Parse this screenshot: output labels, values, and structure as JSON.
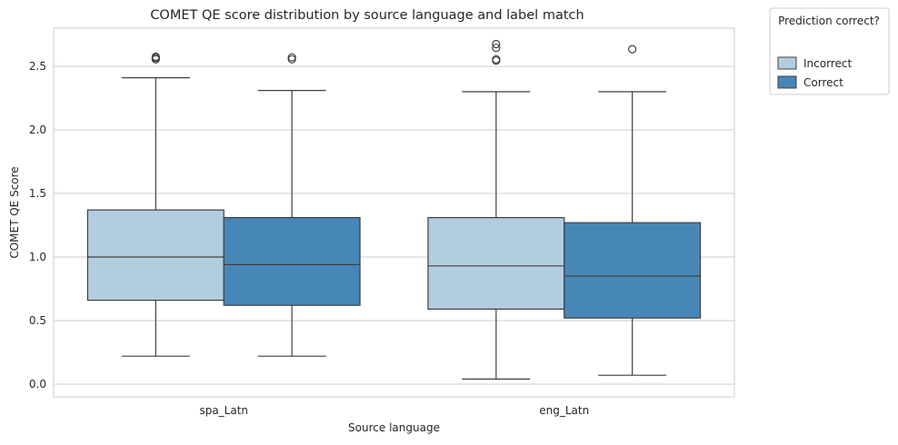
{
  "chart_data": {
    "type": "boxplot",
    "title": "COMET QE score distribution by source language and label match",
    "xlabel": "Source language",
    "ylabel": "COMET QE Score",
    "ylim": [
      -0.1,
      2.8
    ],
    "yticks": [
      0.0,
      0.5,
      1.0,
      1.5,
      2.0,
      2.5
    ],
    "ytick_labels": [
      "0.0",
      "0.5",
      "1.0",
      "1.5",
      "2.0",
      "2.5"
    ],
    "categories": [
      "spa_Latn",
      "eng_Latn"
    ],
    "grid": true,
    "legend": {
      "title": "Prediction correct?",
      "placement": "outside-top-right",
      "entries": [
        "Incorrect",
        "Correct"
      ]
    },
    "series": [
      {
        "name": "Incorrect",
        "color": "#b3cde0",
        "boxes": [
          {
            "whisker_low": 0.22,
            "q1": 0.66,
            "median": 1.0,
            "q3": 1.37,
            "whisker_high": 2.41,
            "outliers": [
              2.555,
              2.565,
              2.575
            ]
          },
          {
            "whisker_low": 0.04,
            "q1": 0.59,
            "median": 0.93,
            "q3": 1.31,
            "whisker_high": 2.3,
            "outliers": [
              2.545,
              2.555,
              2.645,
              2.675
            ]
          }
        ]
      },
      {
        "name": "Correct",
        "color": "#4787b7",
        "boxes": [
          {
            "whisker_low": 0.22,
            "q1": 0.62,
            "median": 0.94,
            "q3": 1.31,
            "whisker_high": 2.31,
            "outliers": [
              2.555,
              2.57
            ]
          },
          {
            "whisker_low": 0.07,
            "q1": 0.52,
            "median": 0.85,
            "q3": 1.27,
            "whisker_high": 2.3,
            "outliers": [
              2.635
            ]
          }
        ]
      }
    ]
  }
}
